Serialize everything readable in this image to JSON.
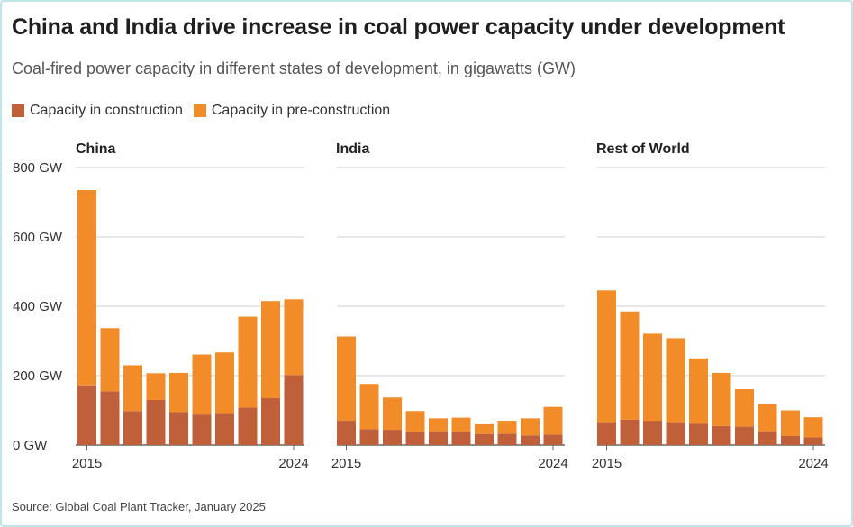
{
  "title": "China and India drive increase in coal power capacity under development",
  "subtitle": "Coal-fired power capacity in different states of development, in gigawatts (GW)",
  "legend": [
    {
      "label": "Capacity in construction",
      "color": "#c0603a"
    },
    {
      "label": "Capacity in pre-construction",
      "color": "#f28c28"
    }
  ],
  "source": "Source: Global Coal Plant Tracker, January 2025",
  "chart_data": {
    "type": "bar",
    "stacked": true,
    "categories": [
      "2015",
      "2016",
      "2017",
      "2018",
      "2019",
      "2020",
      "2021",
      "2022",
      "2023",
      "2024"
    ],
    "x_tick_labels": [
      "2015",
      "2024"
    ],
    "ylim": [
      0,
      800
    ],
    "y_ticks": [
      0,
      200,
      400,
      600,
      800
    ],
    "y_tick_labels": [
      "0 GW",
      "200 GW",
      "400 GW",
      "600 GW",
      "800 GW"
    ],
    "panels": [
      {
        "name": "China",
        "series": [
          {
            "name": "Capacity in construction",
            "values": [
              172,
              155,
              98,
              130,
              95,
              88,
              90,
              108,
              135,
              202
            ]
          },
          {
            "name": "Capacity in pre-construction",
            "values": [
              563,
              182,
              132,
              77,
              113,
              173,
              177,
              262,
              280,
              218
            ]
          }
        ]
      },
      {
        "name": "India",
        "series": [
          {
            "name": "Capacity in construction",
            "values": [
              70,
              46,
              44,
              37,
              40,
              38,
              32,
              33,
              28,
              30
            ]
          },
          {
            "name": "Capacity in pre-construction",
            "values": [
              243,
              130,
              93,
              61,
              37,
              41,
              28,
              37,
              49,
              80
            ]
          }
        ]
      },
      {
        "name": "Rest of World",
        "series": [
          {
            "name": "Capacity in construction",
            "values": [
              66,
              73,
              70,
              66,
              62,
              55,
              53,
              40,
              26,
              22
            ]
          },
          {
            "name": "Capacity in pre-construction",
            "values": [
              380,
              312,
              251,
              242,
              188,
              153,
              108,
              79,
              74,
              58
            ]
          }
        ]
      }
    ]
  }
}
